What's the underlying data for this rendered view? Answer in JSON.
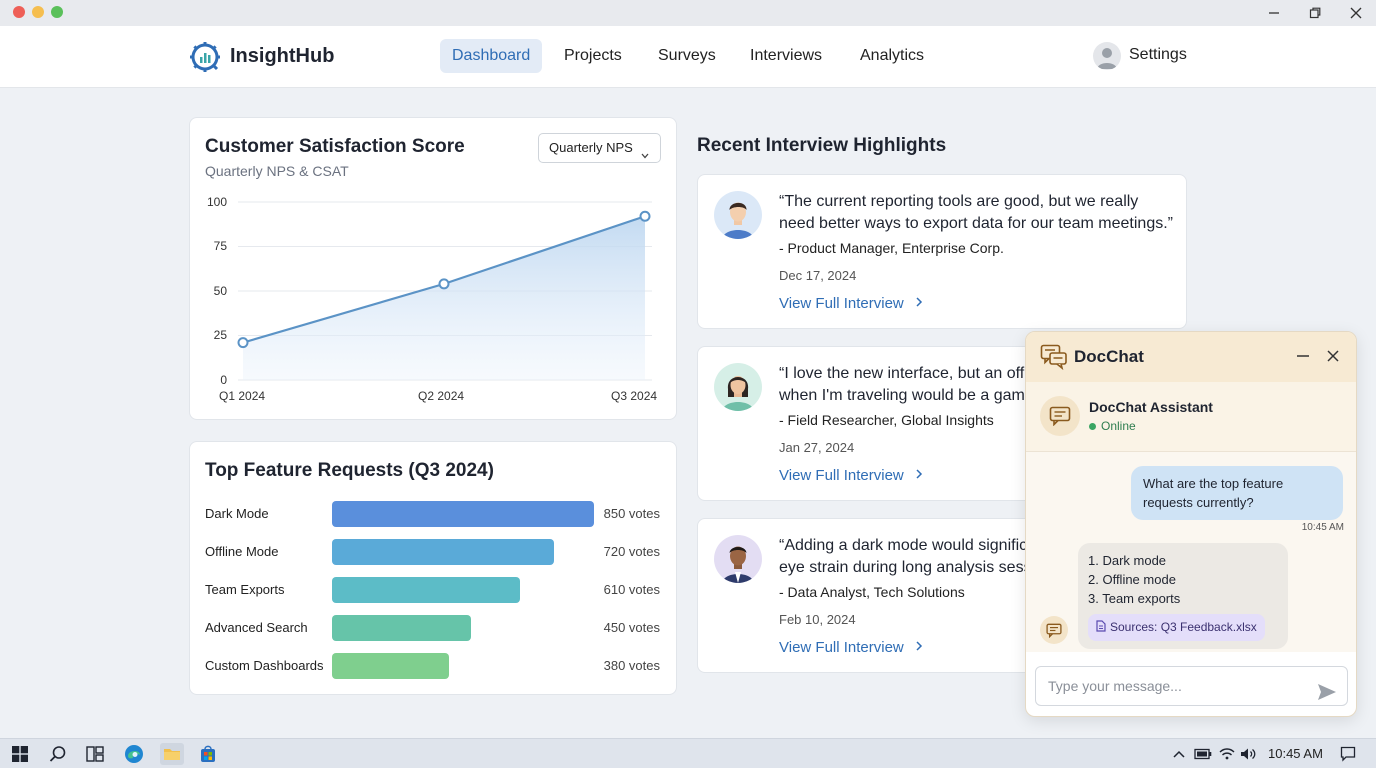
{
  "app": {
    "brand": "InsightHub"
  },
  "nav": {
    "items": [
      {
        "label": "Dashboard",
        "active": true
      },
      {
        "label": "Projects",
        "active": false
      },
      {
        "label": "Surveys",
        "active": false
      },
      {
        "label": "Interviews",
        "active": false
      },
      {
        "label": "Analytics",
        "active": false
      }
    ],
    "settings": "Settings"
  },
  "csat": {
    "title": "Customer Satisfaction Score",
    "subtitle": "Quarterly NPS & CSAT",
    "dropdown": "Quarterly NPS",
    "yticks": [
      "100",
      "75",
      "50",
      "25",
      "0"
    ],
    "xticks": [
      "Q1 2024",
      "Q2 2024",
      "Q3 2024"
    ]
  },
  "chart_data": [
    {
      "type": "line",
      "x": [
        "Q1 2024",
        "Q2 2024",
        "Q3 2024"
      ],
      "values": [
        21,
        54,
        92
      ],
      "ylim": [
        0,
        100
      ],
      "grid": true,
      "color": "#5b93c6"
    },
    {
      "type": "bar",
      "title": "Top Feature Requests (Q3 2024)",
      "categories": [
        "Dark Mode",
        "Offline Mode",
        "Team Exports",
        "Advanced Search",
        "Custom Dashboards"
      ],
      "values": [
        850,
        720,
        610,
        450,
        380
      ],
      "value_labels": [
        "850 votes",
        "720 votes",
        "610 votes",
        "450 votes",
        "380 votes"
      ],
      "colors": [
        "#5a8fdc",
        "#5aaad8",
        "#5cbcc7",
        "#66c4a9",
        "#7fcf8e"
      ]
    }
  ],
  "interviews": {
    "title": "Recent Interview Highlights",
    "items": [
      {
        "line1": "“The current reporting tools are good, but we really",
        "line2": "need better ways to export data for our team meetings.”",
        "attribution": "- Product Manager, Enterprise Corp.",
        "date": "Dec 17, 2024",
        "link": "View Full Interview"
      },
      {
        "line1": "“I love the new interface, but an offl",
        "line2": "when I'm traveling would be a game",
        "attribution": "- Field Researcher, Global Insights",
        "date": "Jan 27, 2024",
        "link": "View Full Interview"
      },
      {
        "line1": "“Adding a dark mode would signific",
        "line2": "eye strain during long analysis sess",
        "attribution": "- Data Analyst, Tech Solutions",
        "date": "Feb 10, 2024",
        "link": "View Full Interview"
      }
    ]
  },
  "docchat": {
    "title": "DocChat",
    "assistant_name": "DocChat Assistant",
    "status": "Online",
    "user_line1": "What are the top feature",
    "user_line2": "requests currently?",
    "time": "10:45 AM",
    "bot_items": [
      "1. Dark mode",
      "2. Offline mode",
      "3. Team exports"
    ],
    "source": "Sources: Q3 Feedback.xlsx",
    "input_placeholder": "Type your message..."
  },
  "taskbar": {
    "time": "10:45 AM"
  }
}
